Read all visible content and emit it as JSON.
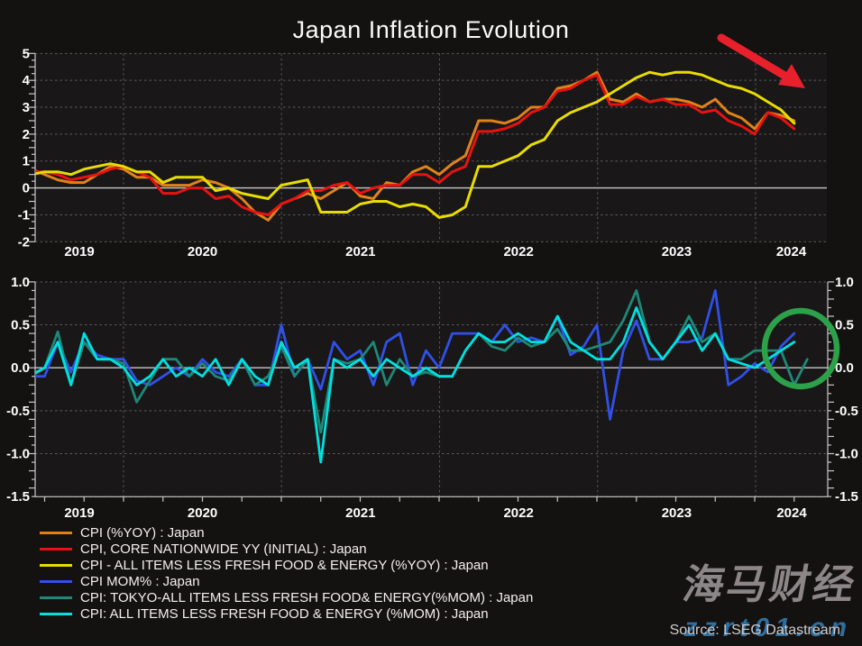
{
  "title": "Japan Inflation Evolution",
  "source": "Source: LSEG Datastream",
  "watermark": {
    "brand": "海马财经",
    "url": "zzrt01.cn"
  },
  "colors": {
    "background": "#141111",
    "plot_background": "#191717",
    "gridline": "#8a8a8a",
    "zero_line": "#c9c9c9",
    "axis": "#c9c9c9",
    "label_text": "#ffffff",
    "arrow_red": "#e8202b",
    "circle_green": "#2da14a",
    "watermark_gray": "#8c8689",
    "watermark_blue": "#2e6f9e"
  },
  "legend": [
    {
      "label": "CPI (%YOY) : Japan",
      "color": "#e0821a"
    },
    {
      "label": "CPI, CORE NATIONWIDE YY (INITIAL) : Japan",
      "color": "#e81212"
    },
    {
      "label": "CPI - ALL ITEMS LESS FRESH FOOD & ENERGY (%YOY) : Japan",
      "color": "#e8dc00"
    },
    {
      "label": "CPI MOM% : Japan",
      "color": "#3050e8"
    },
    {
      "label": "CPI: TOKYO-ALL ITEMS LESS FRESH FOOD& ENERGY(%MOM) : Japan",
      "color": "#1e8878"
    },
    {
      "label": "CPI: ALL ITEMS LESS FRESH FOOD & ENERGY (%MOM) : Japan",
      "color": "#00e0e0"
    }
  ],
  "chart_data": [
    {
      "type": "line",
      "title": "Japan Inflation Evolution",
      "panel": "year-over-year",
      "x_start_month": "2019-06",
      "x_tick_labels": [
        "2019",
        "2020",
        "2021",
        "2022",
        "2023",
        "2024"
      ],
      "ylim": [
        -2,
        5
      ],
      "y_ticks": [
        5,
        4,
        3,
        2,
        1,
        0,
        -1,
        -2
      ],
      "y_tick_labels": [
        "5",
        "4",
        "3",
        "2",
        "1",
        "0",
        "-1",
        "-2"
      ],
      "grid": true,
      "legend_position": "bottom-left",
      "series": [
        {
          "name": "CPI (%YOY) : Japan",
          "color": "#e0821a",
          "values": [
            0.7,
            0.5,
            0.3,
            0.2,
            0.2,
            0.5,
            0.8,
            0.7,
            0.4,
            0.4,
            0.1,
            0.1,
            0.1,
            0.3,
            0.2,
            0.0,
            -0.4,
            -0.9,
            -1.2,
            -0.6,
            -0.4,
            -0.2,
            -0.4,
            -0.1,
            0.2,
            -0.3,
            -0.4,
            0.2,
            0.1,
            0.6,
            0.8,
            0.5,
            0.9,
            1.2,
            2.5,
            2.5,
            2.4,
            2.6,
            3.0,
            3.0,
            3.7,
            3.8,
            4.0,
            4.3,
            3.3,
            3.2,
            3.5,
            3.2,
            3.3,
            3.3,
            3.2,
            3.0,
            3.3,
            2.8,
            2.6,
            2.2,
            2.8,
            2.7,
            2.5
          ]
        },
        {
          "name": "CPI, CORE NATIONWIDE YY (INITIAL) : Japan",
          "color": "#e81212",
          "values": [
            0.6,
            0.6,
            0.5,
            0.3,
            0.4,
            0.5,
            0.7,
            0.8,
            0.6,
            0.4,
            -0.2,
            -0.2,
            0.0,
            0.0,
            -0.4,
            -0.3,
            -0.7,
            -0.9,
            -1.0,
            -0.6,
            -0.4,
            -0.1,
            -0.1,
            0.1,
            0.2,
            -0.2,
            0.0,
            0.1,
            0.1,
            0.5,
            0.5,
            0.2,
            0.6,
            0.8,
            2.1,
            2.1,
            2.2,
            2.4,
            2.8,
            3.0,
            3.6,
            3.7,
            4.0,
            4.2,
            3.1,
            3.1,
            3.4,
            3.2,
            3.3,
            3.1,
            3.1,
            2.8,
            2.9,
            2.5,
            2.3,
            2.0,
            2.8,
            2.6,
            2.2
          ]
        },
        {
          "name": "CPI - ALL ITEMS LESS FRESH FOOD & ENERGY (%YOY) : Japan",
          "color": "#e8dc00",
          "values": [
            0.5,
            0.6,
            0.6,
            0.5,
            0.7,
            0.8,
            0.9,
            0.8,
            0.6,
            0.6,
            0.2,
            0.4,
            0.4,
            0.4,
            -0.1,
            0.0,
            -0.2,
            -0.3,
            -0.4,
            0.1,
            0.2,
            0.3,
            -0.9,
            -0.9,
            -0.9,
            -0.6,
            -0.5,
            -0.5,
            -0.7,
            -0.6,
            -0.7,
            -1.1,
            -1.0,
            -0.7,
            0.8,
            0.8,
            1.0,
            1.2,
            1.6,
            1.8,
            2.5,
            2.8,
            3.0,
            3.2,
            3.5,
            3.8,
            4.1,
            4.3,
            4.2,
            4.3,
            4.3,
            4.2,
            4.0,
            3.8,
            3.7,
            3.5,
            3.2,
            2.9,
            2.4
          ]
        }
      ],
      "annotations": [
        {
          "type": "arrow",
          "direction": "down-right",
          "color": "#e8202b",
          "note": "hand-drawn arrow marking inflation rolling over"
        }
      ]
    },
    {
      "type": "line",
      "panel": "month-over-month",
      "x_start_month": "2019-06",
      "x_tick_labels": [
        "2019",
        "2020",
        "2021",
        "2022",
        "2023",
        "2024"
      ],
      "ylim": [
        -1.5,
        1.0
      ],
      "y_ticks": [
        1.0,
        0.5,
        0.0,
        -0.5,
        -1.0,
        -1.5
      ],
      "y_tick_labels": [
        "1.0",
        "0.5",
        "0.0",
        "-0.5",
        "-1.0",
        "-1.5"
      ],
      "y_axis_sides": "both",
      "grid": true,
      "series": [
        {
          "name": "CPI MOM% : Japan",
          "color": "#3050e8",
          "values": [
            -0.1,
            -0.1,
            0.3,
            -0.05,
            0.3,
            0.15,
            0.1,
            0.1,
            -0.15,
            -0.2,
            -0.1,
            0.0,
            -0.1,
            0.1,
            -0.05,
            -0.1,
            0.1,
            -0.2,
            -0.2,
            0.5,
            -0.1,
            0.1,
            -0.25,
            0.3,
            0.1,
            0.2,
            -0.2,
            0.3,
            0.4,
            -0.2,
            0.2,
            0.0,
            0.4,
            0.4,
            0.4,
            0.3,
            0.5,
            0.3,
            0.35,
            0.3,
            0.6,
            0.15,
            0.25,
            0.5,
            -0.6,
            0.2,
            0.55,
            0.1,
            0.1,
            0.3,
            0.3,
            0.35,
            0.9,
            -0.2,
            -0.1,
            0.05,
            -0.05,
            0.25,
            0.4
          ]
        },
        {
          "name": "CPI: TOKYO-ALL ITEMS LESS FRESH FOOD& ENERGY(%MOM) : Japan",
          "color": "#1e8878",
          "values": [
            -0.1,
            0.0,
            0.42,
            -0.2,
            0.3,
            0.1,
            0.1,
            0.05,
            -0.4,
            -0.15,
            0.1,
            0.1,
            -0.1,
            0.05,
            -0.1,
            -0.15,
            0.1,
            -0.2,
            -0.1,
            0.25,
            -0.1,
            0.1,
            -0.75,
            0.1,
            0.05,
            0.1,
            0.3,
            -0.2,
            0.1,
            -0.1,
            -0.05,
            -0.1,
            -0.1,
            0.2,
            0.4,
            0.25,
            0.2,
            0.35,
            0.25,
            0.3,
            0.45,
            0.2,
            0.2,
            0.25,
            0.3,
            0.55,
            0.9,
            0.3,
            0.1,
            0.3,
            0.6,
            0.3,
            0.4,
            0.1,
            0.1,
            0.2,
            0.2,
            0.2,
            -0.2,
            0.1
          ]
        },
        {
          "name": "CPI: ALL ITEMS LESS FRESH FOOD & ENERGY (%MOM) : Japan",
          "color": "#00e0e0",
          "values": [
            -0.08,
            0.0,
            0.3,
            -0.2,
            0.4,
            0.1,
            0.1,
            0.0,
            -0.2,
            -0.1,
            0.1,
            -0.1,
            0.0,
            -0.1,
            0.1,
            -0.2,
            0.1,
            -0.1,
            -0.2,
            0.3,
            0.0,
            0.1,
            -1.1,
            0.1,
            0.0,
            0.1,
            -0.1,
            0.1,
            0.0,
            -0.1,
            0.0,
            -0.1,
            -0.1,
            0.2,
            0.4,
            0.3,
            0.3,
            0.4,
            0.3,
            0.3,
            0.6,
            0.3,
            0.2,
            0.1,
            0.1,
            0.3,
            0.7,
            0.3,
            0.1,
            0.3,
            0.5,
            0.2,
            0.4,
            0.1,
            0.05,
            0.0,
            0.1,
            0.2,
            0.3
          ]
        }
      ],
      "annotations": [
        {
          "type": "circle",
          "color": "#2da14a",
          "note": "green circle highlighting most recent monthly prints"
        }
      ]
    }
  ]
}
